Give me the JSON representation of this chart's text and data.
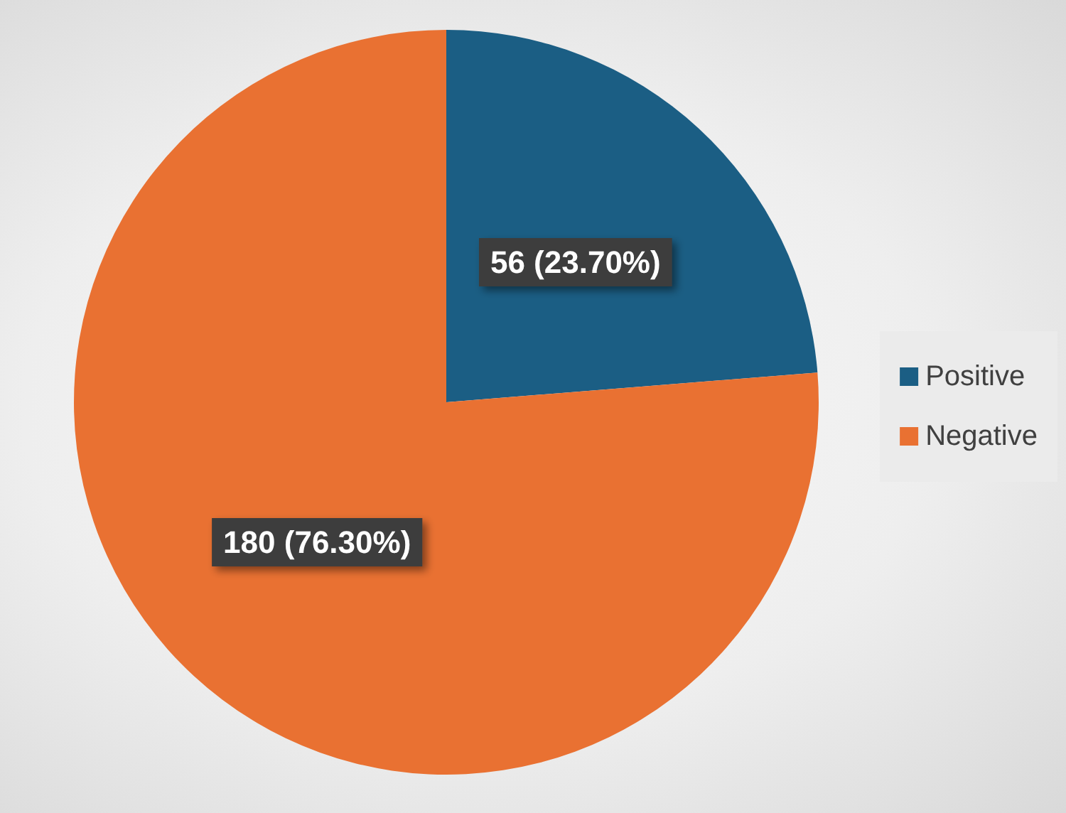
{
  "chart_data": {
    "type": "pie",
    "categories": [
      "Positive",
      "Negative"
    ],
    "values": [
      56,
      180
    ],
    "colors": [
      "#1b5e84",
      "#e97132"
    ],
    "value_labels": [
      "56 (23.70%)",
      "180 (76.30%)"
    ],
    "legend": "right"
  }
}
